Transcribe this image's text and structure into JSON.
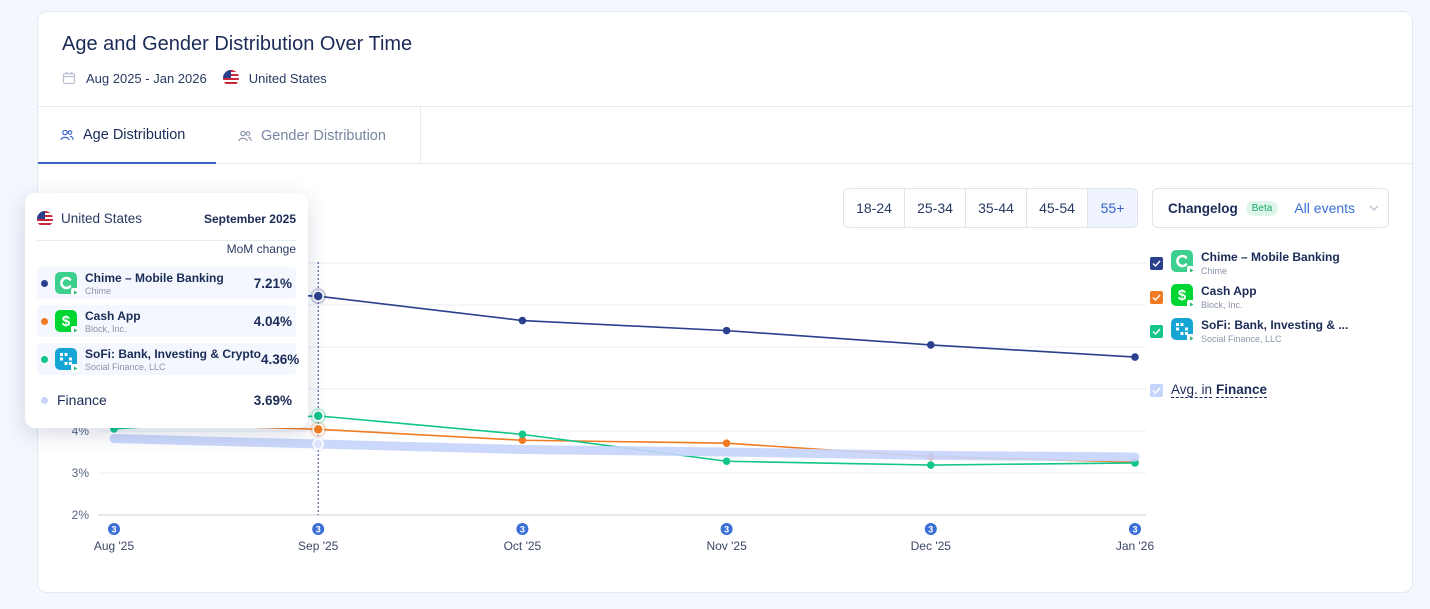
{
  "header": {
    "title": "Age and Gender Distribution Over Time",
    "date_range": "Aug 2025 - Jan 2026",
    "country": "United States"
  },
  "tabs": [
    {
      "label": "Age Distribution",
      "active": true
    },
    {
      "label": "Gender Distribution",
      "active": false
    }
  ],
  "age_buckets": [
    {
      "label": "18-24",
      "active": false
    },
    {
      "label": "25-34",
      "active": false
    },
    {
      "label": "35-44",
      "active": false
    },
    {
      "label": "45-54",
      "active": false
    },
    {
      "label": "55+",
      "active": true
    }
  ],
  "changelog": {
    "label": "Changelog",
    "badge": "Beta",
    "selected": "All events"
  },
  "legend": {
    "apps": [
      {
        "name": "Chime – Mobile Banking",
        "publisher": "Chime",
        "color": "#2b3f8c",
        "checked": true
      },
      {
        "name": "Cash App",
        "publisher": "Block, Inc.",
        "color": "#f07b22",
        "checked": true
      },
      {
        "name": "SoFi: Bank, Investing & ...",
        "publisher": "Social Finance, LLC",
        "color": "#12c58a",
        "checked": true
      }
    ],
    "avg_prefix": "Avg. in",
    "avg_category": "Finance"
  },
  "tooltip": {
    "country": "United States",
    "month": "September 2025",
    "column_label": "MoM change",
    "rows": [
      {
        "name": "Chime – Mobile Banking",
        "publisher": "Chime",
        "value": "7.21%",
        "color": "#2b3f8c"
      },
      {
        "name": "Cash App",
        "publisher": "Block, Inc.",
        "value": "4.04%",
        "color": "#f07b22"
      },
      {
        "name": "SoFi: Bank, Investing & Crypto",
        "publisher": "Social Finance, LLC",
        "value": "4.36%",
        "color": "#12c58a"
      }
    ],
    "finance_label": "Finance",
    "finance_value": "3.69%"
  },
  "chart_data": {
    "type": "line",
    "x": [
      "Aug '25",
      "Sep '25",
      "Oct '25",
      "Nov '25",
      "Dec '25",
      "Jan '26"
    ],
    "y_ticks": [
      "2%",
      "3%",
      "4%"
    ],
    "ylim": [
      2,
      8
    ],
    "series": [
      {
        "name": "Chime – Mobile Banking",
        "color": "#2b3f8c",
        "values": [
          7.4,
          7.21,
          6.63,
          6.39,
          6.05,
          5.76
        ]
      },
      {
        "name": "Cash App",
        "color": "#f07b22",
        "values": [
          4.2,
          4.04,
          3.78,
          3.71,
          3.39,
          3.26
        ]
      },
      {
        "name": "SoFi: Bank, Investing & Crypto",
        "color": "#12c58a",
        "values": [
          4.05,
          4.36,
          3.92,
          3.28,
          3.19,
          3.24
        ]
      },
      {
        "name": "Finance",
        "color": "#c7d4fb",
        "values": [
          3.82,
          3.69,
          3.56,
          3.5,
          3.42,
          3.38
        ]
      }
    ],
    "event_markers": [
      "3",
      "3",
      "3",
      "3",
      "3",
      "3"
    ],
    "hover_index": 1
  }
}
